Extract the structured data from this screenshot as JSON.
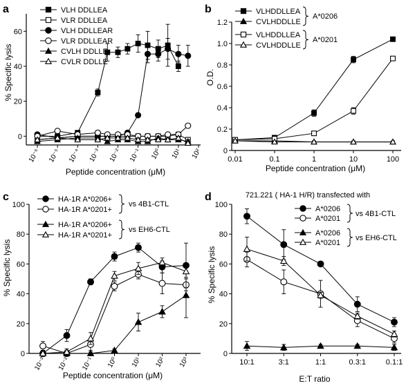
{
  "chart_data": [
    {
      "panel": "a",
      "type": "line",
      "xlabel": "Peptide concentration (μM)",
      "ylabel": "% Specific lysis",
      "xscale": "log",
      "xlim": [
        1e-06,
        100
      ],
      "ylim": [
        -5,
        70
      ],
      "yticks": [
        0,
        20,
        40,
        60
      ],
      "xticks": [
        "10⁻⁶",
        "10⁻⁵",
        "10⁻⁴",
        "10⁻³",
        "10⁻²",
        "10⁻¹",
        "10⁰",
        "10¹",
        "10²"
      ],
      "legend_position": "top-left",
      "series": [
        {
          "name": "VLH DDLLEA",
          "marker": "square",
          "fill": "filled",
          "x": [
            1e-06,
            1e-05,
            0.0001,
            0.001,
            0.003,
            0.01,
            0.03,
            0.1,
            0.3,
            1,
            3,
            10
          ],
          "y": [
            0,
            0,
            2,
            25,
            48,
            48,
            50,
            53,
            52,
            50,
            52,
            40
          ],
          "err": [
            1,
            1,
            1,
            2,
            5,
            3,
            3,
            5,
            8,
            5,
            12,
            3
          ]
        },
        {
          "name": "VLR DDLLEA",
          "marker": "square",
          "fill": "open",
          "x": [
            1e-06,
            1e-05,
            0.0001,
            0.001,
            0.003,
            0.01,
            0.03,
            0.1,
            0.3,
            1,
            3,
            10,
            30
          ],
          "y": [
            -2,
            -1,
            0,
            0,
            0,
            0,
            0,
            0,
            0,
            0,
            0,
            1,
            -2
          ],
          "err": [
            1,
            1,
            1,
            1,
            1,
            1,
            1,
            1,
            1,
            1,
            1,
            1,
            1
          ]
        },
        {
          "name": "VLH DDLLEAR",
          "marker": "circle",
          "fill": "filled",
          "x": [
            1e-06,
            1e-05,
            0.0001,
            0.001,
            0.003,
            0.01,
            0.03,
            0.1,
            0.3,
            1,
            3,
            10,
            30
          ],
          "y": [
            1,
            -1,
            0,
            0,
            0,
            0,
            2,
            12,
            47,
            47,
            50,
            47,
            46
          ],
          "err": [
            1,
            1,
            1,
            1,
            1,
            1,
            1,
            1,
            5,
            4,
            6,
            5,
            6
          ]
        },
        {
          "name": "VLR DDLLEAR",
          "marker": "circle",
          "fill": "open",
          "x": [
            1e-06,
            1e-05,
            0.0001,
            0.001,
            0.003,
            0.01,
            0.03,
            0.1,
            0.3,
            1,
            3,
            10,
            30
          ],
          "y": [
            0,
            3,
            1,
            2,
            1,
            1,
            1,
            0,
            0,
            0,
            1,
            1,
            6
          ],
          "err": [
            1,
            1,
            1,
            1,
            1,
            1,
            1,
            1,
            1,
            1,
            1,
            1,
            1
          ]
        },
        {
          "name": "CVLH DDLLE",
          "marker": "triangle",
          "fill": "filled",
          "x": [
            1e-06,
            1e-05,
            0.0001,
            0.001,
            0.003,
            0.01,
            0.03,
            0.1,
            0.3,
            1,
            3,
            10,
            30
          ],
          "y": [
            -3,
            -2,
            -1,
            -1,
            -3,
            -2,
            -2,
            -3,
            -3,
            -1,
            -2,
            -2,
            -3
          ],
          "err": [
            1,
            1,
            1,
            1,
            1,
            1,
            1,
            1,
            1,
            1,
            1,
            1,
            1
          ]
        },
        {
          "name": "CVLR DDLLE",
          "marker": "triangle",
          "fill": "open",
          "x": [
            1e-06,
            1e-05,
            0.0001,
            0.001,
            0.003,
            0.01,
            0.03,
            0.1,
            0.3,
            1,
            3,
            10,
            30
          ],
          "y": [
            -2,
            -1,
            -2,
            -2,
            -1,
            -1,
            -1,
            -2,
            -2,
            -2,
            -2,
            -1,
            -4
          ],
          "err": [
            1,
            1,
            1,
            1,
            1,
            1,
            1,
            1,
            1,
            1,
            1,
            1,
            1
          ]
        }
      ]
    },
    {
      "panel": "b",
      "type": "line",
      "xlabel": "Peptide concentration (μM)",
      "ylabel": "O.D.",
      "xscale": "log",
      "xlim": [
        0.01,
        100
      ],
      "ylim": [
        0,
        1.2
      ],
      "yticks": [
        0,
        0.2,
        0.4,
        0.6,
        0.8,
        1.0,
        1.2
      ],
      "ytick_labels": [
        "0",
        "0.2",
        "0.4",
        "0.6",
        "0.8",
        "1.0",
        "1.2"
      ],
      "xticks": [
        "0.01",
        "0.1",
        "1",
        "10",
        "100"
      ],
      "legend_position": "top-left",
      "legend_groups": [
        "A*0206",
        "A*0201"
      ],
      "series": [
        {
          "name": "VLHDDLLEA",
          "group": "A*0206",
          "marker": "square",
          "fill": "filled",
          "x": [
            0.01,
            0.1,
            1,
            10,
            100
          ],
          "y": [
            0.1,
            0.12,
            0.35,
            0.85,
            1.04
          ],
          "err": [
            0.01,
            0.02,
            0.03,
            0.03,
            0.01
          ]
        },
        {
          "name": "CVLHDDLLE",
          "group": "A*0206",
          "marker": "triangle",
          "fill": "filled",
          "x": [
            0.01,
            0.1,
            1,
            10,
            100
          ],
          "y": [
            0.09,
            0.09,
            0.08,
            0.08,
            0.08
          ],
          "err": [
            0.01,
            0.01,
            0.01,
            0.01,
            0.01
          ]
        },
        {
          "name": "VLHDDLLEA",
          "group": "A*0201",
          "marker": "square",
          "fill": "open",
          "x": [
            0.01,
            0.1,
            1,
            10,
            100
          ],
          "y": [
            0.1,
            0.11,
            0.16,
            0.37,
            0.86
          ],
          "err": [
            0.01,
            0.01,
            0.02,
            0.03,
            0.02
          ]
        },
        {
          "name": "CVLHDDLLE",
          "group": "A*0201",
          "marker": "triangle",
          "fill": "open",
          "x": [
            0.01,
            0.1,
            1,
            10,
            100
          ],
          "y": [
            0.09,
            0.08,
            0.08,
            0.08,
            0.08
          ],
          "err": [
            0.01,
            0.01,
            0.01,
            0.01,
            0.01
          ]
        }
      ]
    },
    {
      "panel": "c",
      "type": "line",
      "xlabel": "Peptide concentration (μM)",
      "ylabel": "% Specific lysis",
      "xscale": "log",
      "xlim": [
        0.001,
        1000
      ],
      "ylim": [
        0,
        100
      ],
      "yticks": [
        0,
        20,
        40,
        60,
        80,
        100
      ],
      "xticks": [
        "10⁻³",
        "10⁻²",
        "10⁻¹",
        "10⁰",
        "10¹",
        "10²",
        "10³"
      ],
      "legend_position": "top-left",
      "legend_groups": [
        "vs 4B1-CTL",
        "vs EH6-CTL"
      ],
      "series": [
        {
          "name": "HA-1R A*0206+",
          "group": "vs 4B1-CTL",
          "marker": "circle",
          "fill": "filled",
          "x": [
            0.001,
            0.01,
            0.1,
            1,
            10,
            100,
            1000
          ],
          "y": [
            0,
            12,
            48,
            65,
            71,
            58,
            59
          ],
          "err": [
            2,
            4,
            2,
            3,
            3,
            4,
            15
          ]
        },
        {
          "name": "HA-1R A*0201+",
          "group": "vs 4B1-CTL",
          "marker": "circle",
          "fill": "open",
          "x": [
            0.001,
            0.01,
            0.1,
            1,
            10,
            100,
            1000
          ],
          "y": [
            5,
            0,
            6,
            45,
            53,
            47,
            46
          ],
          "err": [
            3,
            2,
            4,
            3,
            3,
            7,
            4
          ]
        },
        {
          "name": "HA-1R A*0206+",
          "group": "vs EH6-CTL",
          "marker": "triangle",
          "fill": "filled",
          "x": [
            0.001,
            0.01,
            0.1,
            1,
            10,
            100,
            1000
          ],
          "y": [
            0,
            0,
            0,
            2,
            21,
            28,
            39
          ],
          "err": [
            2,
            1,
            1,
            1,
            6,
            4,
            15
          ]
        },
        {
          "name": "HA-1R A*0201+",
          "group": "vs EH6-CTL",
          "marker": "triangle",
          "fill": "open",
          "x": [
            0.001,
            0.01,
            0.1,
            1,
            10,
            100,
            1000
          ],
          "y": [
            0,
            1,
            10,
            52,
            57,
            61,
            55
          ],
          "err": [
            2,
            2,
            4,
            3,
            4,
            3,
            4
          ]
        }
      ]
    },
    {
      "panel": "d",
      "type": "line",
      "title": "721.221 ( HA-1 H/R) transfected with",
      "xlabel": "E:T ratio",
      "ylabel": "% Specific lysis",
      "categories": [
        "10:1",
        "3:1",
        "1:1",
        "0.3:1",
        "0.1:1"
      ],
      "ylim": [
        0,
        100
      ],
      "yticks": [
        0,
        20,
        40,
        60,
        80,
        100
      ],
      "legend_position": "top-right",
      "legend_groups": [
        "vs 4B1-CTL",
        "vs EH6-CTL"
      ],
      "series": [
        {
          "name": "A*0206",
          "group": "vs 4B1-CTL",
          "marker": "circle",
          "fill": "filled",
          "values": [
            92,
            73,
            60,
            33,
            21
          ],
          "err": [
            5,
            10,
            1,
            5,
            3
          ]
        },
        {
          "name": "A*0201",
          "group": "vs 4B1-CTL",
          "marker": "circle",
          "fill": "open",
          "values": [
            63,
            48,
            40,
            22,
            10
          ],
          "err": [
            5,
            8,
            9,
            4,
            3
          ]
        },
        {
          "name": "A*0206",
          "group": "vs EH6-CTL",
          "marker": "triangle",
          "fill": "filled",
          "values": [
            5,
            4,
            5,
            5,
            4
          ],
          "err": [
            3,
            2,
            1,
            1,
            2
          ]
        },
        {
          "name": "A*0201",
          "group": "vs EH6-CTL",
          "marker": "triangle",
          "fill": "open",
          "values": [
            70,
            62,
            39,
            25,
            13
          ],
          "err": [
            8,
            3,
            2,
            2,
            2
          ]
        }
      ]
    }
  ],
  "panels": {
    "a": {
      "label": "a",
      "ylabel": "% Specific lysis",
      "xlabel": "Peptide concentration (μM)",
      "legend": [
        "VLH DDLLEA",
        "VLR DDLLEA",
        "VLH DDLLEAR",
        "VLR DDLLEAR",
        "CVLH DDLLE",
        "CVLR DDLLE"
      ]
    },
    "b": {
      "label": "b",
      "ylabel": "O.D.",
      "xlabel": "Peptide concentration (μM)",
      "legend": [
        "VLHDDLLEA",
        "CVLHDDLLE",
        "VLHDDLLEA",
        "CVLHDDLLE"
      ],
      "group1": "A*0206",
      "group2": "A*0201"
    },
    "c": {
      "label": "c",
      "ylabel": "% Specific lysis",
      "xlabel": "Peptide concentration (μM)",
      "legend": [
        "HA-1R A*0206+",
        "HA-1R A*0201+",
        "HA-1R A*0206+",
        "HA-1R A*0201+"
      ],
      "group1": "vs 4B1-CTL",
      "group2": "vs EH6-CTL"
    },
    "d": {
      "label": "d",
      "ylabel": "% Specific lysis",
      "xlabel": "E:T ratio",
      "title": "721.221 ( HA-1 H/R) transfected with",
      "legend": [
        "A*0206",
        "A*0201",
        "A*0206",
        "A*0201"
      ],
      "group1": "vs 4B1-CTL",
      "group2": "vs EH6-CTL"
    }
  }
}
